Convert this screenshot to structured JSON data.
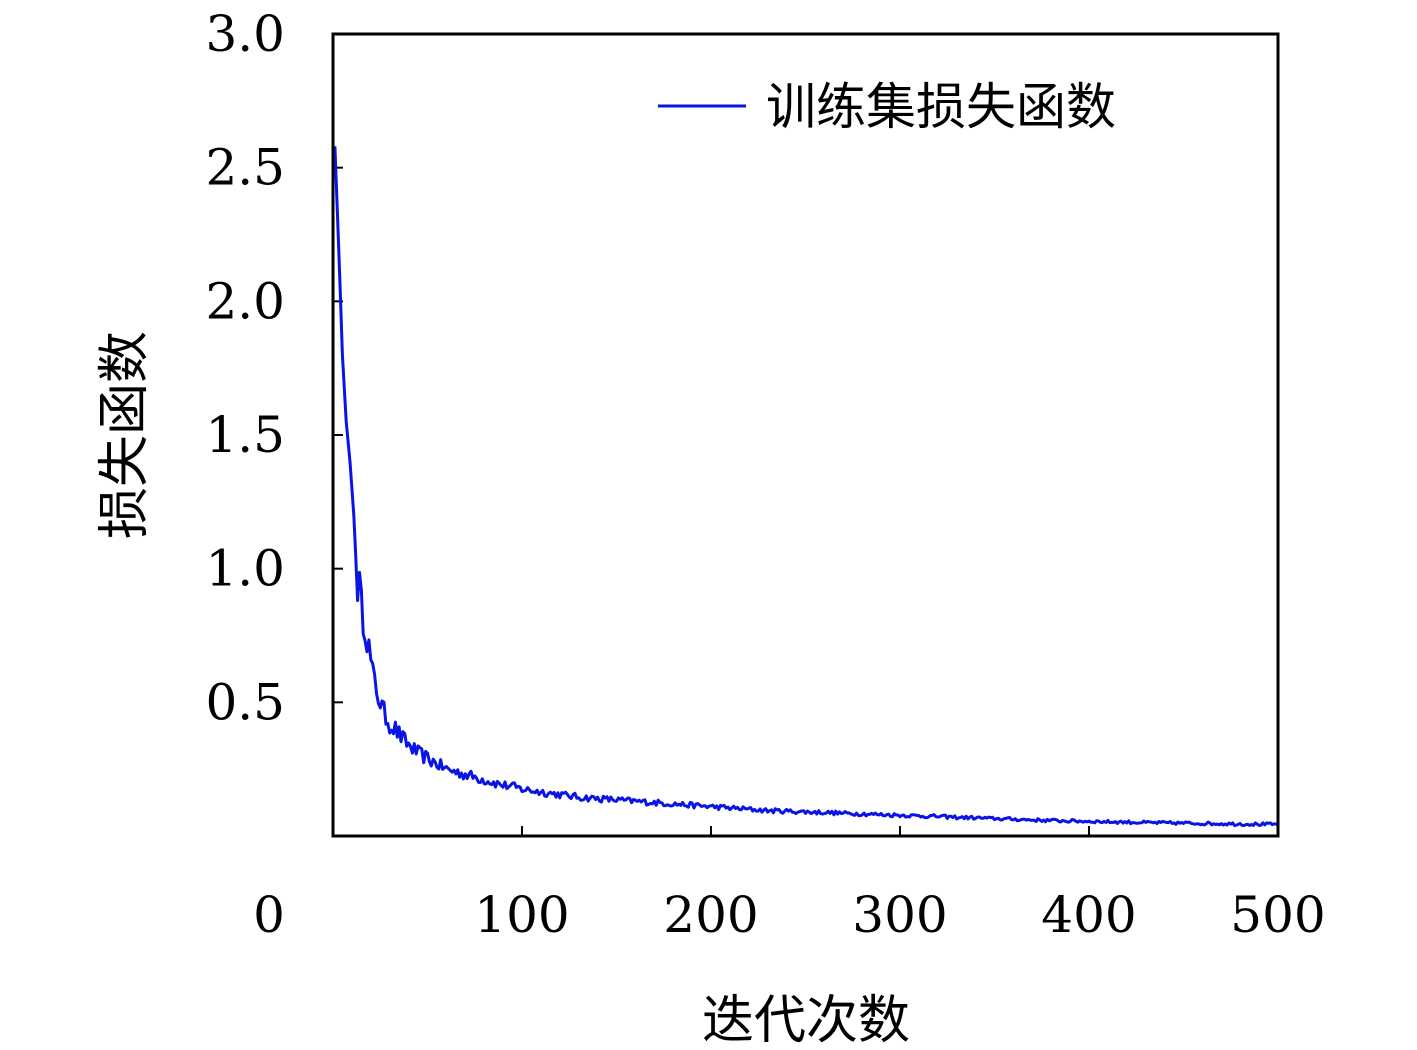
{
  "chart_data": {
    "type": "line",
    "title": "",
    "xlabel": "迭代次数",
    "ylabel": "损失函数",
    "xlim": [
      0,
      500
    ],
    "ylim": [
      0,
      3.0
    ],
    "xticks": [
      {
        "value": 0,
        "label": "0"
      },
      {
        "value": 100,
        "label": "100"
      },
      {
        "value": 200,
        "label": "200"
      },
      {
        "value": 300,
        "label": "300"
      },
      {
        "value": 400,
        "label": "400"
      },
      {
        "value": 500,
        "label": "500"
      }
    ],
    "yticks": [
      {
        "value": 0.5,
        "label": "0.5"
      },
      {
        "value": 1.0,
        "label": "1.0"
      },
      {
        "value": 1.5,
        "label": "1.5"
      },
      {
        "value": 2.0,
        "label": "2.0"
      },
      {
        "value": 2.5,
        "label": "2.5"
      },
      {
        "value": 3.0,
        "label": "3.0"
      }
    ],
    "grid": false,
    "legend_position": "top-right",
    "series": [
      {
        "name": "训练集损失函数",
        "color": "#0a14e6",
        "x": [
          1,
          3,
          5,
          7,
          9,
          11,
          12,
          13,
          14,
          15,
          17,
          19,
          21,
          23,
          25,
          27,
          30,
          33,
          36,
          40,
          45,
          50,
          55,
          60,
          65,
          70,
          75,
          80,
          85,
          90,
          95,
          100,
          110,
          120,
          130,
          140,
          150,
          160,
          170,
          180,
          190,
          200,
          210,
          220,
          230,
          240,
          250,
          260,
          270,
          280,
          290,
          300,
          310,
          320,
          330,
          340,
          350,
          360,
          370,
          380,
          390,
          400,
          410,
          420,
          430,
          440,
          450,
          460,
          470,
          480,
          490,
          500
        ],
        "y": [
          2.58,
          2.2,
          1.8,
          1.55,
          1.4,
          1.2,
          1.05,
          0.95,
          0.93,
          0.85,
          0.8,
          0.7,
          0.6,
          0.55,
          0.5,
          0.46,
          0.42,
          0.4,
          0.37,
          0.34,
          0.31,
          0.29,
          0.27,
          0.25,
          0.24,
          0.23,
          0.22,
          0.21,
          0.2,
          0.19,
          0.185,
          0.175,
          0.165,
          0.155,
          0.145,
          0.14,
          0.135,
          0.13,
          0.125,
          0.12,
          0.115,
          0.11,
          0.105,
          0.1,
          0.095,
          0.093,
          0.09,
          0.088,
          0.085,
          0.083,
          0.08,
          0.078,
          0.075,
          0.073,
          0.07,
          0.068,
          0.065,
          0.063,
          0.06,
          0.058,
          0.056,
          0.055,
          0.053,
          0.052,
          0.05,
          0.049,
          0.048,
          0.047,
          0.046,
          0.045,
          0.044,
          0.043
        ]
      }
    ]
  }
}
